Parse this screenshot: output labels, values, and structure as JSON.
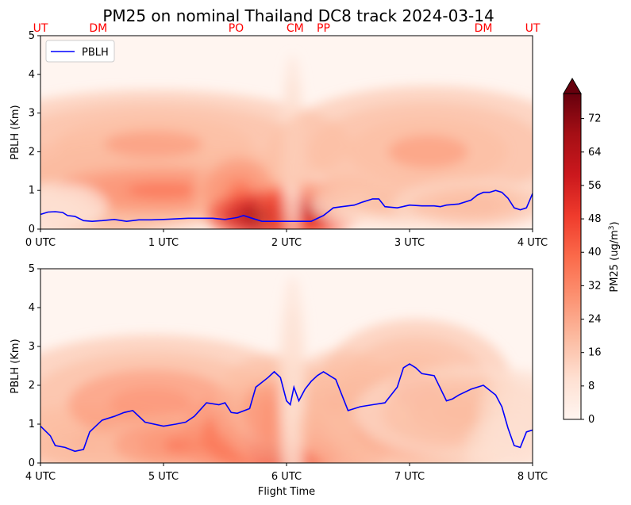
{
  "chart_data": {
    "type": "heatmap",
    "title": "PM25 on nominal Thailand DC8 track 2024-03-14",
    "site_labels": [
      "UT",
      "DM",
      "PO",
      "CM",
      "PP",
      "DM",
      "UT"
    ],
    "site_times": [
      0.0,
      0.47,
      1.59,
      2.07,
      2.3,
      3.6,
      4.0
    ],
    "site_color": "#ff0000",
    "xlabel": "Flight Time",
    "ylabel": "PBLH (Km)",
    "ylim": [
      0,
      5
    ],
    "yticks": [
      "0",
      "1",
      "2",
      "3",
      "4",
      "5"
    ],
    "legend": {
      "position": "upper-left",
      "label": "PBLH",
      "color": "#0000ff"
    },
    "colorbar": {
      "label_prefix": "PM25 (ug/m",
      "label_sup": "3",
      "label_suffix": ")",
      "range": [
        0,
        78
      ],
      "ticks": [
        "0",
        "8",
        "16",
        "24",
        "32",
        "40",
        "48",
        "56",
        "64",
        "72"
      ],
      "colormap": "Reds",
      "extend": "max"
    },
    "panels": [
      {
        "name": "panel-0-4-utc",
        "xlim": [
          0,
          4
        ],
        "xticks": [
          "0 UTC",
          "1 UTC",
          "2 UTC",
          "3 UTC",
          "4 UTC"
        ],
        "pblh": {
          "t": [
            0.0,
            0.06,
            0.12,
            0.18,
            0.22,
            0.28,
            0.35,
            0.42,
            0.5,
            0.6,
            0.7,
            0.8,
            0.9,
            1.0,
            1.2,
            1.4,
            1.5,
            1.6,
            1.65,
            1.72,
            1.8,
            1.9,
            2.0,
            2.1,
            2.2,
            2.3,
            2.38,
            2.45,
            2.55,
            2.62,
            2.7,
            2.75,
            2.8,
            2.9,
            3.0,
            3.1,
            3.2,
            3.25,
            3.3,
            3.4,
            3.5,
            3.55,
            3.6,
            3.65,
            3.7,
            3.75,
            3.8,
            3.85,
            3.9,
            3.95,
            4.0
          ],
          "v": [
            0.38,
            0.44,
            0.45,
            0.43,
            0.35,
            0.33,
            0.22,
            0.2,
            0.22,
            0.25,
            0.2,
            0.24,
            0.24,
            0.25,
            0.28,
            0.28,
            0.25,
            0.3,
            0.35,
            0.28,
            0.2,
            0.2,
            0.2,
            0.2,
            0.2,
            0.35,
            0.55,
            0.58,
            0.62,
            0.7,
            0.78,
            0.78,
            0.58,
            0.55,
            0.62,
            0.6,
            0.6,
            0.58,
            0.62,
            0.65,
            0.75,
            0.88,
            0.95,
            0.95,
            1.0,
            0.95,
            0.8,
            0.55,
            0.5,
            0.55,
            0.92
          ]
        }
      },
      {
        "name": "panel-4-8-utc",
        "xlim": [
          4,
          8
        ],
        "xticks": [
          "4 UTC",
          "5 UTC",
          "6 UTC",
          "7 UTC",
          "8 UTC"
        ],
        "pblh": {
          "t": [
            4.0,
            4.08,
            4.12,
            4.2,
            4.28,
            4.35,
            4.4,
            4.5,
            4.6,
            4.68,
            4.75,
            4.85,
            5.0,
            5.1,
            5.18,
            5.25,
            5.35,
            5.45,
            5.5,
            5.55,
            5.6,
            5.7,
            5.75,
            5.85,
            5.9,
            5.95,
            6.0,
            6.03,
            6.06,
            6.1,
            6.15,
            6.2,
            6.25,
            6.3,
            6.4,
            6.5,
            6.6,
            6.7,
            6.8,
            6.9,
            6.95,
            7.0,
            7.05,
            7.1,
            7.2,
            7.3,
            7.35,
            7.4,
            7.5,
            7.6,
            7.7,
            7.75,
            7.8,
            7.85,
            7.9,
            7.95,
            8.0
          ],
          "v": [
            0.95,
            0.7,
            0.45,
            0.4,
            0.3,
            0.35,
            0.8,
            1.1,
            1.2,
            1.3,
            1.35,
            1.05,
            0.95,
            1.0,
            1.05,
            1.2,
            1.55,
            1.5,
            1.55,
            1.3,
            1.28,
            1.4,
            1.95,
            2.2,
            2.35,
            2.2,
            1.6,
            1.5,
            1.95,
            1.6,
            1.9,
            2.1,
            2.25,
            2.35,
            2.15,
            1.35,
            1.45,
            1.5,
            1.55,
            1.95,
            2.45,
            2.55,
            2.45,
            2.3,
            2.25,
            1.6,
            1.65,
            1.75,
            1.9,
            2.0,
            1.75,
            1.45,
            0.9,
            0.45,
            0.4,
            0.8,
            0.85
          ]
        }
      }
    ]
  }
}
